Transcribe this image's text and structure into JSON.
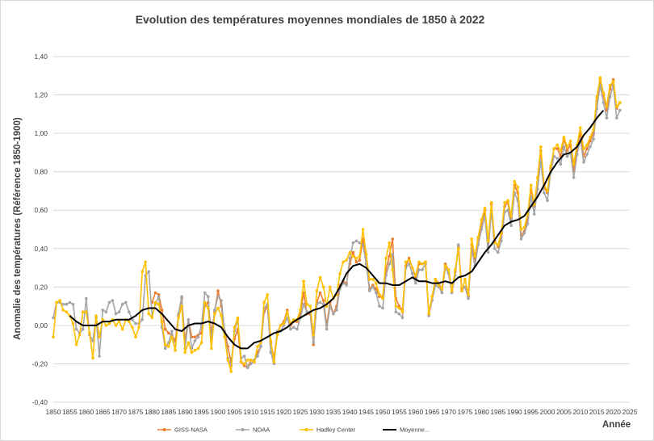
{
  "chart_data": {
    "type": "line",
    "title": "Evolution des températures moyennes mondiales de 1850 à 2022",
    "xlabel": "Année",
    "ylabel": "Anomalie des températures (Référence 1850-1900)",
    "xlim": [
      1850,
      2025
    ],
    "ylim": [
      -0.4,
      1.4
    ],
    "x_ticks": [
      1850,
      1855,
      1860,
      1865,
      1870,
      1875,
      1880,
      1885,
      1890,
      1895,
      1900,
      1905,
      1910,
      1915,
      1920,
      1925,
      1930,
      1935,
      1940,
      1945,
      1950,
      1955,
      1960,
      1965,
      1970,
      1975,
      1980,
      1985,
      1990,
      1995,
      2000,
      2005,
      2010,
      2015,
      2020,
      2025
    ],
    "y_ticks": [
      "-0,40",
      "-0,20",
      "0,00",
      "0,20",
      "0,40",
      "0,60",
      "0,80",
      "1,00",
      "1,20",
      "1,40"
    ],
    "y_tick_values": [
      -0.4,
      -0.2,
      0,
      0.2,
      0.4,
      0.6,
      0.8,
      1.0,
      1.2,
      1.4
    ],
    "grid": "horizontal",
    "legend_position": "bottom",
    "series": [
      {
        "name": "GISS-NASA",
        "color": "#ed7d31",
        "x": [
          1880,
          1881,
          1882,
          1883,
          1884,
          1885,
          1886,
          1887,
          1888,
          1889,
          1890,
          1891,
          1892,
          1893,
          1894,
          1895,
          1896,
          1897,
          1898,
          1899,
          1900,
          1901,
          1902,
          1903,
          1904,
          1905,
          1906,
          1907,
          1908,
          1909,
          1910,
          1911,
          1912,
          1913,
          1914,
          1915,
          1916,
          1917,
          1918,
          1919,
          1920,
          1921,
          1922,
          1923,
          1924,
          1925,
          1926,
          1927,
          1928,
          1929,
          1930,
          1931,
          1932,
          1933,
          1934,
          1935,
          1936,
          1937,
          1938,
          1939,
          1940,
          1941,
          1942,
          1943,
          1944,
          1945,
          1946,
          1947,
          1948,
          1949,
          1950,
          1951,
          1952,
          1953,
          1954,
          1955,
          1956,
          1957,
          1958,
          1959,
          1960,
          1961,
          1962,
          1963,
          1964,
          1965,
          1966,
          1967,
          1968,
          1969,
          1970,
          1971,
          1972,
          1973,
          1974,
          1975,
          1976,
          1977,
          1978,
          1979,
          1980,
          1981,
          1982,
          1983,
          1984,
          1985,
          1986,
          1987,
          1988,
          1989,
          1990,
          1991,
          1992,
          1993,
          1994,
          1995,
          1996,
          1997,
          1998,
          1999,
          2000,
          2001,
          2002,
          2003,
          2004,
          2005,
          2006,
          2007,
          2008,
          2009,
          2010,
          2011,
          2012,
          2013,
          2014,
          2015,
          2016,
          2017,
          2018,
          2019,
          2020,
          2021,
          2022
        ],
        "values": [
          0.12,
          0.17,
          0.16,
          0.08,
          -0.02,
          -0.04,
          -0.05,
          -0.08,
          0.05,
          0.14,
          -0.08,
          0.03,
          -0.06,
          -0.06,
          -0.05,
          -0.04,
          0.1,
          0.12,
          -0.04,
          0.07,
          0.18,
          0.1,
          -0.03,
          -0.11,
          -0.19,
          -0.07,
          -0.02,
          -0.19,
          -0.21,
          -0.22,
          -0.18,
          -0.19,
          -0.14,
          -0.11,
          0.07,
          0.1,
          -0.09,
          -0.17,
          -0.04,
          0.0,
          0.02,
          0.08,
          0.0,
          0.02,
          0.02,
          0.06,
          0.17,
          0.06,
          0.06,
          -0.1,
          0.12,
          0.17,
          0.13,
          0.0,
          0.12,
          0.06,
          0.1,
          0.21,
          0.23,
          0.22,
          0.32,
          0.38,
          0.33,
          0.34,
          0.45,
          0.32,
          0.19,
          0.21,
          0.19,
          0.15,
          0.15,
          0.29,
          0.36,
          0.45,
          0.14,
          0.1,
          0.08,
          0.31,
          0.35,
          0.3,
          0.25,
          0.32,
          0.32,
          0.33,
          0.06,
          0.15,
          0.24,
          0.22,
          0.19,
          0.32,
          0.29,
          0.18,
          0.28,
          0.41,
          0.19,
          0.2,
          0.15,
          0.42,
          0.34,
          0.45,
          0.53,
          0.6,
          0.41,
          0.63,
          0.44,
          0.41,
          0.47,
          0.62,
          0.64,
          0.55,
          0.73,
          0.69,
          0.47,
          0.49,
          0.56,
          0.71,
          0.62,
          0.74,
          0.91,
          0.72,
          0.69,
          0.82,
          0.92,
          0.92,
          0.88,
          0.97,
          0.91,
          0.94,
          0.8,
          0.92,
          1.0,
          0.88,
          0.92,
          0.96,
          1.0,
          1.17,
          1.28,
          1.2,
          1.12,
          1.23,
          1.28,
          1.13,
          1.16
        ]
      },
      {
        "name": "NOAA",
        "color": "#a5a5a5",
        "x": [
          1850,
          1851,
          1852,
          1853,
          1854,
          1855,
          1856,
          1857,
          1858,
          1859,
          1860,
          1861,
          1862,
          1863,
          1864,
          1865,
          1866,
          1867,
          1868,
          1869,
          1870,
          1871,
          1872,
          1873,
          1874,
          1875,
          1876,
          1877,
          1878,
          1879,
          1880,
          1881,
          1882,
          1883,
          1884,
          1885,
          1886,
          1887,
          1888,
          1889,
          1890,
          1891,
          1892,
          1893,
          1894,
          1895,
          1896,
          1897,
          1898,
          1899,
          1900,
          1901,
          1902,
          1903,
          1904,
          1905,
          1906,
          1907,
          1908,
          1909,
          1910,
          1911,
          1912,
          1913,
          1914,
          1915,
          1916,
          1917,
          1918,
          1919,
          1920,
          1921,
          1922,
          1923,
          1924,
          1925,
          1926,
          1927,
          1928,
          1929,
          1930,
          1931,
          1932,
          1933,
          1934,
          1935,
          1936,
          1937,
          1938,
          1939,
          1940,
          1941,
          1942,
          1943,
          1944,
          1945,
          1946,
          1947,
          1948,
          1949,
          1950,
          1951,
          1952,
          1953,
          1954,
          1955,
          1956,
          1957,
          1958,
          1959,
          1960,
          1961,
          1962,
          1963,
          1964,
          1965,
          1966,
          1967,
          1968,
          1969,
          1970,
          1971,
          1972,
          1973,
          1974,
          1975,
          1976,
          1977,
          1978,
          1979,
          1980,
          1981,
          1982,
          1983,
          1984,
          1985,
          1986,
          1987,
          1988,
          1989,
          1990,
          1991,
          1992,
          1993,
          1994,
          1995,
          1996,
          1997,
          1998,
          1999,
          2000,
          2001,
          2002,
          2003,
          2004,
          2005,
          2006,
          2007,
          2008,
          2009,
          2010,
          2011,
          2012,
          2013,
          2014,
          2015,
          2016,
          2017,
          2018,
          2019,
          2020,
          2021,
          2022
        ],
        "values": [
          0.04,
          0.12,
          0.12,
          0.11,
          0.11,
          0.12,
          0.11,
          -0.02,
          -0.04,
          -0.02,
          0.14,
          -0.05,
          -0.08,
          0.04,
          -0.16,
          0.08,
          0.07,
          0.12,
          0.13,
          0.06,
          0.07,
          0.11,
          0.12,
          0.07,
          0.03,
          0.01,
          0.01,
          0.03,
          0.26,
          0.28,
          0.05,
          0.11,
          0.15,
          -0.01,
          -0.12,
          -0.09,
          -0.03,
          -0.13,
          0.06,
          0.15,
          -0.12,
          0.03,
          -0.12,
          -0.08,
          -0.06,
          0.0,
          0.17,
          0.15,
          -0.08,
          0.08,
          0.15,
          0.13,
          -0.03,
          -0.17,
          -0.21,
          -0.03,
          0.03,
          -0.17,
          -0.16,
          -0.22,
          -0.2,
          -0.18,
          -0.16,
          -0.11,
          0.09,
          0.11,
          -0.14,
          -0.2,
          -0.03,
          -0.03,
          0.0,
          0.04,
          -0.02,
          -0.01,
          -0.02,
          0.04,
          0.11,
          0.07,
          0.07,
          -0.09,
          0.11,
          0.12,
          0.11,
          -0.02,
          0.1,
          0.06,
          0.08,
          0.19,
          0.22,
          0.21,
          0.35,
          0.43,
          0.44,
          0.43,
          0.42,
          0.32,
          0.18,
          0.2,
          0.17,
          0.1,
          0.09,
          0.26,
          0.32,
          0.37,
          0.07,
          0.06,
          0.04,
          0.3,
          0.32,
          0.27,
          0.22,
          0.29,
          0.29,
          0.32,
          0.05,
          0.13,
          0.21,
          0.2,
          0.17,
          0.3,
          0.27,
          0.17,
          0.26,
          0.42,
          0.18,
          0.2,
          0.14,
          0.4,
          0.31,
          0.42,
          0.5,
          0.57,
          0.38,
          0.6,
          0.4,
          0.38,
          0.44,
          0.59,
          0.6,
          0.52,
          0.69,
          0.65,
          0.45,
          0.48,
          0.53,
          0.67,
          0.58,
          0.71,
          0.86,
          0.69,
          0.65,
          0.8,
          0.88,
          0.87,
          0.84,
          0.93,
          0.88,
          0.9,
          0.77,
          0.89,
          0.97,
          0.85,
          0.89,
          0.93,
          0.97,
          1.13,
          1.25,
          1.16,
          1.08,
          1.19,
          1.25,
          1.08,
          1.12
        ]
      },
      {
        "name": "Hadley Center",
        "color": "#ffc000",
        "x": [
          1850,
          1851,
          1852,
          1853,
          1854,
          1855,
          1856,
          1857,
          1858,
          1859,
          1860,
          1861,
          1862,
          1863,
          1864,
          1865,
          1866,
          1867,
          1868,
          1869,
          1870,
          1871,
          1872,
          1873,
          1874,
          1875,
          1876,
          1877,
          1878,
          1879,
          1880,
          1881,
          1882,
          1883,
          1884,
          1885,
          1886,
          1887,
          1888,
          1889,
          1890,
          1891,
          1892,
          1893,
          1894,
          1895,
          1896,
          1897,
          1898,
          1899,
          1900,
          1901,
          1902,
          1903,
          1904,
          1905,
          1906,
          1907,
          1908,
          1909,
          1910,
          1911,
          1912,
          1913,
          1914,
          1915,
          1916,
          1917,
          1918,
          1919,
          1920,
          1921,
          1922,
          1923,
          1924,
          1925,
          1926,
          1927,
          1928,
          1929,
          1930,
          1931,
          1932,
          1933,
          1934,
          1935,
          1936,
          1937,
          1938,
          1939,
          1940,
          1941,
          1942,
          1943,
          1944,
          1945,
          1946,
          1947,
          1948,
          1949,
          1950,
          1951,
          1952,
          1953,
          1954,
          1955,
          1956,
          1957,
          1958,
          1959,
          1960,
          1961,
          1962,
          1963,
          1964,
          1965,
          1966,
          1967,
          1968,
          1969,
          1970,
          1971,
          1972,
          1973,
          1974,
          1975,
          1976,
          1977,
          1978,
          1979,
          1980,
          1981,
          1982,
          1983,
          1984,
          1985,
          1986,
          1987,
          1988,
          1989,
          1990,
          1991,
          1992,
          1993,
          1994,
          1995,
          1996,
          1997,
          1998,
          1999,
          2000,
          2001,
          2002,
          2003,
          2004,
          2005,
          2006,
          2007,
          2008,
          2009,
          2010,
          2011,
          2012,
          2013,
          2014,
          2015,
          2016,
          2017,
          2018,
          2019,
          2020,
          2021,
          2022
        ],
        "values": [
          -0.06,
          0.12,
          0.13,
          0.08,
          0.07,
          0.05,
          0.01,
          -0.1,
          -0.05,
          0.07,
          0.07,
          -0.04,
          -0.17,
          0.05,
          -0.06,
          0.03,
          0.0,
          0.01,
          0.03,
          0.0,
          0.02,
          -0.02,
          0.03,
          0.02,
          -0.01,
          -0.06,
          -0.01,
          0.28,
          0.33,
          0.06,
          0.04,
          0.12,
          0.11,
          0.02,
          -0.1,
          -0.11,
          -0.06,
          -0.13,
          0.04,
          0.1,
          -0.14,
          -0.09,
          -0.14,
          -0.13,
          -0.12,
          -0.09,
          0.12,
          0.09,
          -0.12,
          0.06,
          0.09,
          0.05,
          -0.06,
          -0.18,
          -0.24,
          -0.01,
          0.04,
          -0.19,
          -0.2,
          -0.18,
          -0.18,
          -0.19,
          -0.11,
          -0.09,
          0.12,
          0.16,
          -0.08,
          -0.19,
          -0.05,
          0.0,
          0.01,
          0.07,
          0.01,
          0.03,
          0.03,
          0.08,
          0.23,
          0.11,
          0.1,
          -0.05,
          0.18,
          0.25,
          0.2,
          0.1,
          0.2,
          0.14,
          0.16,
          0.27,
          0.33,
          0.34,
          0.38,
          0.36,
          0.35,
          0.36,
          0.5,
          0.37,
          0.24,
          0.24,
          0.22,
          0.16,
          0.14,
          0.35,
          0.43,
          0.29,
          0.1,
          0.09,
          0.07,
          0.33,
          0.34,
          0.3,
          0.26,
          0.33,
          0.32,
          0.33,
          0.06,
          0.15,
          0.24,
          0.21,
          0.19,
          0.31,
          0.29,
          0.18,
          0.29,
          0.4,
          0.18,
          0.24,
          0.16,
          0.45,
          0.36,
          0.46,
          0.55,
          0.61,
          0.44,
          0.64,
          0.43,
          0.42,
          0.48,
          0.64,
          0.65,
          0.57,
          0.75,
          0.72,
          0.5,
          0.51,
          0.58,
          0.73,
          0.63,
          0.77,
          0.93,
          0.73,
          0.7,
          0.83,
          0.92,
          0.94,
          0.91,
          0.98,
          0.93,
          0.96,
          0.84,
          0.94,
          1.03,
          0.92,
          0.94,
          0.98,
          1.02,
          1.19,
          1.29,
          1.21,
          1.14,
          1.25,
          1.27,
          1.14,
          1.16
        ]
      },
      {
        "name": "Moyenne...",
        "color": "#000000",
        "x": [
          1855,
          1857,
          1859,
          1861,
          1863,
          1865,
          1867,
          1869,
          1871,
          1873,
          1875,
          1877,
          1879,
          1881,
          1883,
          1885,
          1887,
          1889,
          1891,
          1893,
          1895,
          1897,
          1899,
          1901,
          1903,
          1905,
          1907,
          1909,
          1911,
          1913,
          1915,
          1917,
          1919,
          1921,
          1923,
          1925,
          1927,
          1929,
          1931,
          1933,
          1935,
          1937,
          1939,
          1941,
          1943,
          1945,
          1947,
          1949,
          1951,
          1953,
          1955,
          1957,
          1959,
          1961,
          1963,
          1965,
          1967,
          1969,
          1971,
          1973,
          1975,
          1977,
          1979,
          1981,
          1983,
          1985,
          1987,
          1989,
          1991,
          1993,
          1995,
          1997,
          1999,
          2001,
          2003,
          2005,
          2007,
          2009,
          2011,
          2013,
          2015,
          2017
        ],
        "values": [
          0.05,
          0.02,
          0.0,
          0.0,
          0.0,
          0.02,
          0.02,
          0.03,
          0.03,
          0.03,
          0.05,
          0.08,
          0.09,
          0.09,
          0.06,
          0.02,
          -0.02,
          -0.03,
          0.0,
          0.01,
          0.01,
          0.02,
          0.01,
          -0.01,
          -0.06,
          -0.1,
          -0.12,
          -0.12,
          -0.09,
          -0.08,
          -0.06,
          -0.04,
          -0.03,
          -0.01,
          0.02,
          0.04,
          0.06,
          0.08,
          0.09,
          0.11,
          0.14,
          0.2,
          0.27,
          0.31,
          0.32,
          0.3,
          0.26,
          0.22,
          0.22,
          0.21,
          0.21,
          0.23,
          0.25,
          0.23,
          0.23,
          0.22,
          0.22,
          0.23,
          0.22,
          0.25,
          0.26,
          0.28,
          0.33,
          0.38,
          0.42,
          0.47,
          0.52,
          0.54,
          0.55,
          0.57,
          0.62,
          0.67,
          0.73,
          0.8,
          0.85,
          0.89,
          0.9,
          0.93,
          0.99,
          1.03,
          1.08,
          1.12
        ]
      }
    ]
  }
}
